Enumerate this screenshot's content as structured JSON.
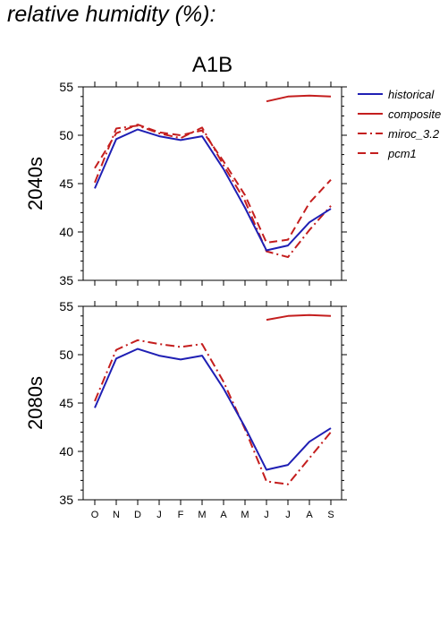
{
  "page_title": "relative humidity (%):",
  "scenario_title": "A1B",
  "colors": {
    "historical": "#1f1fb4",
    "model": "#c41e1e",
    "axis": "#000000"
  },
  "legend": [
    {
      "name": "historical",
      "color": "#1f1fb4",
      "dash": "solid"
    },
    {
      "name": "composite",
      "color": "#c41e1e",
      "dash": "solid"
    },
    {
      "name": "miroc_3.2",
      "color": "#c41e1e",
      "dash": "dashdot"
    },
    {
      "name": "pcm1",
      "color": "#c41e1e",
      "dash": "dash"
    }
  ],
  "chart_data": [
    {
      "type": "line",
      "panel_label": "2040s",
      "categories": [
        "O",
        "N",
        "D",
        "J",
        "F",
        "M",
        "A",
        "M",
        "J",
        "J",
        "A",
        "S"
      ],
      "ylim": [
        35,
        55
      ],
      "yticks": [
        35,
        40,
        45,
        50,
        55
      ],
      "series": [
        {
          "name": "historical",
          "values": [
            44.5,
            49.6,
            50.6,
            49.9,
            49.5,
            49.9,
            46.5,
            42.5,
            38.1,
            38.6,
            41.0,
            42.4
          ]
        },
        {
          "name": "composite",
          "values": [
            null,
            null,
            null,
            null,
            null,
            null,
            null,
            null,
            53.5,
            54.0,
            54.1,
            54.0
          ]
        },
        {
          "name": "miroc_3.2",
          "values": [
            45.1,
            50.7,
            51.0,
            50.2,
            49.7,
            50.8,
            46.9,
            43.2,
            38.0,
            37.4,
            40.2,
            42.7
          ]
        },
        {
          "name": "pcm1",
          "values": [
            46.6,
            50.2,
            51.1,
            50.3,
            50.0,
            50.5,
            47.3,
            43.8,
            38.9,
            39.2,
            43.0,
            45.4
          ]
        }
      ]
    },
    {
      "type": "line",
      "panel_label": "2080s",
      "categories": [
        "O",
        "N",
        "D",
        "J",
        "F",
        "M",
        "A",
        "M",
        "J",
        "J",
        "A",
        "S"
      ],
      "ylim": [
        35,
        55
      ],
      "yticks": [
        35,
        40,
        45,
        50,
        55
      ],
      "series": [
        {
          "name": "historical",
          "values": [
            44.5,
            49.6,
            50.6,
            49.9,
            49.5,
            49.9,
            46.5,
            42.5,
            38.1,
            38.6,
            41.0,
            42.4
          ]
        },
        {
          "name": "composite",
          "values": [
            null,
            null,
            null,
            null,
            null,
            null,
            null,
            null,
            53.6,
            54.0,
            54.1,
            54.0
          ]
        },
        {
          "name": "miroc_3.2",
          "values": [
            45.2,
            50.5,
            51.5,
            51.1,
            50.8,
            51.1,
            47.2,
            42.3,
            36.9,
            36.6,
            39.3,
            42.0
          ]
        }
      ]
    }
  ]
}
